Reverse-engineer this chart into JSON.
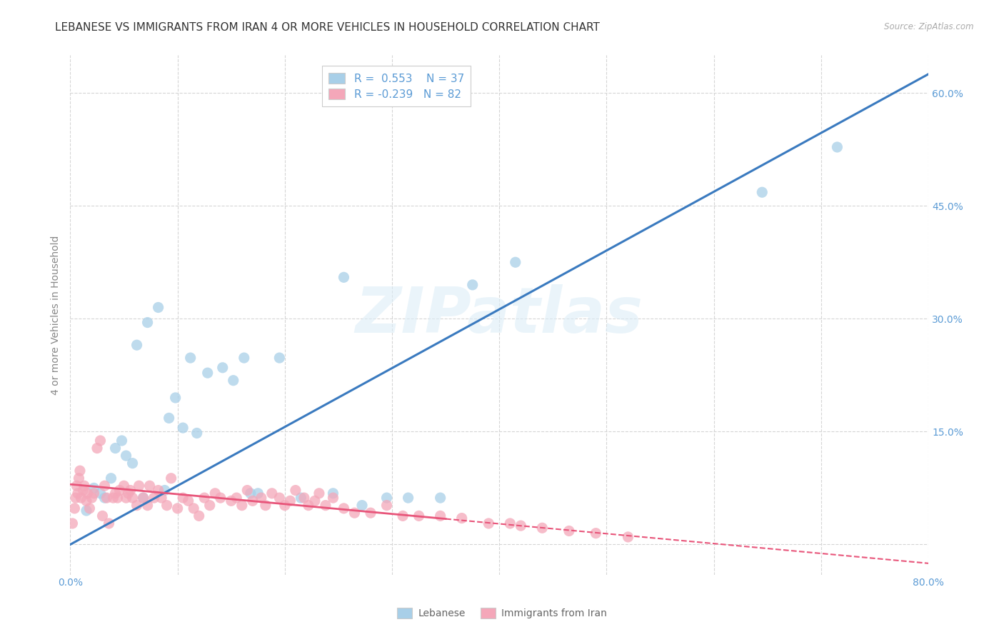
{
  "title": "LEBANESE VS IMMIGRANTS FROM IRAN 4 OR MORE VEHICLES IN HOUSEHOLD CORRELATION CHART",
  "source": "Source: ZipAtlas.com",
  "ylabel": "4 or more Vehicles in Household",
  "xmin": 0.0,
  "xmax": 0.8,
  "ymin": -0.04,
  "ymax": 0.65,
  "x_ticks": [
    0.0,
    0.1,
    0.2,
    0.3,
    0.4,
    0.5,
    0.6,
    0.7,
    0.8
  ],
  "y_ticks": [
    0.0,
    0.15,
    0.3,
    0.45,
    0.6
  ],
  "watermark": "ZIPatlas",
  "legend_r1": "R =  0.553",
  "legend_n1": "N = 37",
  "legend_r2": "R = -0.239",
  "legend_n2": "N = 82",
  "color_blue": "#a8cfe8",
  "color_pink": "#f4a7b9",
  "color_blue_line": "#3a7abf",
  "color_pink_line": "#e8557a",
  "blue_scatter_x": [
    0.015,
    0.022,
    0.028,
    0.032,
    0.038,
    0.042,
    0.048,
    0.052,
    0.058,
    0.062,
    0.068,
    0.072,
    0.082,
    0.088,
    0.092,
    0.098,
    0.105,
    0.112,
    0.118,
    0.128,
    0.142,
    0.152,
    0.162,
    0.168,
    0.175,
    0.195,
    0.215,
    0.245,
    0.255,
    0.272,
    0.295,
    0.315,
    0.345,
    0.375,
    0.415,
    0.645,
    0.715
  ],
  "blue_scatter_y": [
    0.045,
    0.075,
    0.068,
    0.062,
    0.088,
    0.128,
    0.138,
    0.118,
    0.108,
    0.265,
    0.062,
    0.295,
    0.315,
    0.072,
    0.168,
    0.195,
    0.155,
    0.248,
    0.148,
    0.228,
    0.235,
    0.218,
    0.248,
    0.068,
    0.068,
    0.248,
    0.062,
    0.068,
    0.355,
    0.052,
    0.062,
    0.062,
    0.062,
    0.345,
    0.375,
    0.468,
    0.528
  ],
  "pink_scatter_x": [
    0.002,
    0.004,
    0.005,
    0.006,
    0.007,
    0.008,
    0.009,
    0.01,
    0.012,
    0.013,
    0.015,
    0.016,
    0.018,
    0.02,
    0.022,
    0.025,
    0.028,
    0.03,
    0.032,
    0.034,
    0.036,
    0.04,
    0.042,
    0.044,
    0.046,
    0.05,
    0.052,
    0.054,
    0.056,
    0.058,
    0.062,
    0.064,
    0.068,
    0.072,
    0.074,
    0.078,
    0.082,
    0.085,
    0.09,
    0.094,
    0.1,
    0.105,
    0.11,
    0.115,
    0.12,
    0.125,
    0.13,
    0.135,
    0.14,
    0.15,
    0.155,
    0.16,
    0.165,
    0.17,
    0.178,
    0.182,
    0.188,
    0.195,
    0.2,
    0.205,
    0.21,
    0.218,
    0.222,
    0.228,
    0.232,
    0.238,
    0.245,
    0.255,
    0.265,
    0.28,
    0.295,
    0.31,
    0.325,
    0.345,
    0.365,
    0.39,
    0.41,
    0.42,
    0.44,
    0.465,
    0.49,
    0.52
  ],
  "pink_scatter_y": [
    0.028,
    0.048,
    0.062,
    0.078,
    0.068,
    0.088,
    0.098,
    0.062,
    0.072,
    0.078,
    0.058,
    0.068,
    0.048,
    0.062,
    0.068,
    0.128,
    0.138,
    0.038,
    0.078,
    0.062,
    0.028,
    0.062,
    0.068,
    0.062,
    0.072,
    0.078,
    0.062,
    0.068,
    0.072,
    0.062,
    0.052,
    0.078,
    0.062,
    0.052,
    0.078,
    0.062,
    0.072,
    0.062,
    0.052,
    0.088,
    0.048,
    0.062,
    0.058,
    0.048,
    0.038,
    0.062,
    0.052,
    0.068,
    0.062,
    0.058,
    0.062,
    0.052,
    0.072,
    0.058,
    0.062,
    0.052,
    0.068,
    0.062,
    0.052,
    0.058,
    0.072,
    0.062,
    0.052,
    0.058,
    0.068,
    0.052,
    0.062,
    0.048,
    0.042,
    0.042,
    0.052,
    0.038,
    0.038,
    0.038,
    0.035,
    0.028,
    0.028,
    0.025,
    0.022,
    0.018,
    0.015,
    0.01
  ],
  "blue_line_x0": 0.0,
  "blue_line_x1": 0.8,
  "blue_line_y0": 0.0,
  "blue_line_y1": 0.625,
  "pink_line_x0": 0.0,
  "pink_line_x1": 0.8,
  "pink_line_y0": 0.08,
  "pink_line_y1": -0.025,
  "background_color": "#ffffff",
  "grid_color": "#d5d5d5",
  "tick_color_right": "#5b9bd5",
  "tick_color_bottom": "#5b9bd5",
  "title_fontsize": 11,
  "axis_fontsize": 9,
  "legend_fontsize": 11,
  "legend_color": "#5b9bd5"
}
